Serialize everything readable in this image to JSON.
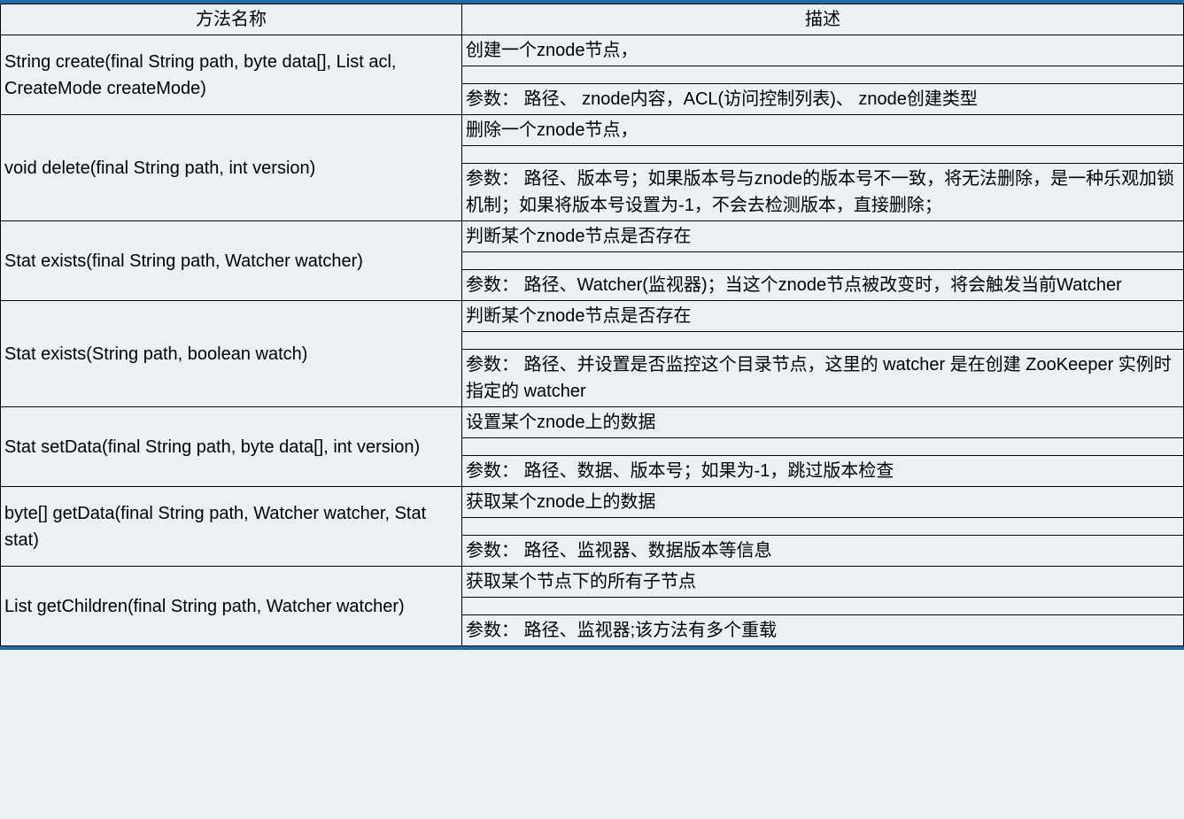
{
  "table": {
    "headers": {
      "method": "方法名称",
      "description": "描述"
    },
    "rows": [
      {
        "method": "String create(final String path, byte data[], List acl, CreateMode createMode)",
        "desc1": "创建一个znode节点，",
        "desc2": "",
        "desc3": "参数： 路径、 znode内容，ACL(访问控制列表)、 znode创建类型"
      },
      {
        "method": "void delete(final String path, int version)",
        "desc1": "删除一个znode节点，",
        "desc2": "",
        "desc3": "参数： 路径、版本号；如果版本号与znode的版本号不一致，将无法删除，是一种乐观加锁机制；如果将版本号设置为-1，不会去检测版本，直接删除；"
      },
      {
        "method": "Stat exists(final String path, Watcher watcher)",
        "desc1": "判断某个znode节点是否存在",
        "desc2": "",
        "desc3": "参数： 路径、Watcher(监视器)；当这个znode节点被改变时，将会触发当前Watcher"
      },
      {
        "method": "Stat exists(String path, boolean watch)",
        "desc1": "判断某个znode节点是否存在",
        "desc2": "",
        "desc3": "参数： 路径、并设置是否监控这个目录节点，这里的 watcher 是在创建 ZooKeeper 实例时指定的 watcher"
      },
      {
        "method": "Stat setData(final String path, byte data[], int version)",
        "desc1": "设置某个znode上的数据",
        "desc2": "",
        "desc3": "参数： 路径、数据、版本号；如果为-1，跳过版本检查"
      },
      {
        "method": "byte[] getData(final String path, Watcher watcher, Stat stat)",
        "desc1": "获取某个znode上的数据",
        "desc2": "",
        "desc3": "参数： 路径、监视器、数据版本等信息"
      },
      {
        "method": "List getChildren(final String path, Watcher watcher)",
        "desc1": "获取某个节点下的所有子节点",
        "desc2": "",
        "desc3": "参数： 路径、监视器;该方法有多个重载"
      }
    ],
    "styling": {
      "background_color": "#eaf0f3",
      "border_color": "#000000",
      "top_border_color": "#1e6ba8",
      "text_color": "#000000",
      "font_size": 20,
      "column_widths": [
        "39%",
        "61%"
      ]
    }
  }
}
